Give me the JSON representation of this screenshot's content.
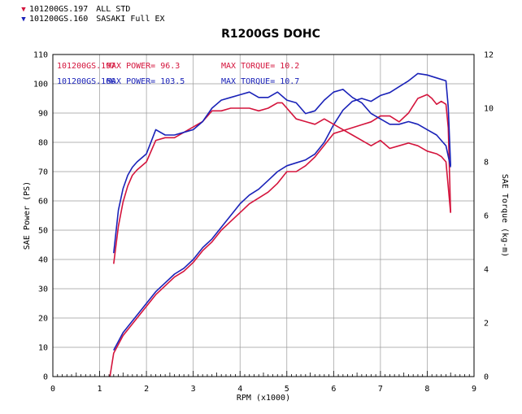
{
  "legend": [
    {
      "label": "101200GS.197",
      "desc": "ALL STD",
      "color": "#d4143c"
    },
    {
      "label": "101200GS.160",
      "desc": "SASAKI Full EX",
      "color": "#1a22b8"
    }
  ],
  "summary": [
    {
      "file": "101200GS.197",
      "power_text": "MAX POWER= 96.3",
      "torque_text": "MAX TORQUE= 10.2",
      "color": "#d4143c"
    },
    {
      "file": "101200GS.160",
      "power_text": "MAX POWER= 103.5",
      "torque_text": "MAX TORQUE= 10.7",
      "color": "#1a22b8"
    }
  ],
  "chart_data": {
    "type": "line",
    "title": "R1200GS DOHC",
    "xlabel": "RPM (x1000)",
    "ylabel": "SAE Power (PS)",
    "y2label": "SAE Torque (kg-m)",
    "xlim": [
      0,
      9
    ],
    "ylim": [
      0,
      110
    ],
    "y2lim": [
      0,
      12
    ],
    "xticks": [
      0,
      1,
      2,
      3,
      4,
      5,
      6,
      7,
      8,
      9
    ],
    "yticks": [
      0,
      10,
      20,
      30,
      40,
      50,
      60,
      70,
      80,
      90,
      100,
      110
    ],
    "y2ticks": [
      0,
      2,
      4,
      6,
      8,
      10,
      12
    ],
    "grid": true,
    "series": [
      {
        "name": "101200GS.197",
        "quantity": "power",
        "axis": "left",
        "color": "#d4143c",
        "x": [
          1.22,
          1.3,
          1.4,
          1.5,
          1.6,
          1.8,
          2.0,
          2.2,
          2.4,
          2.6,
          2.8,
          3.0,
          3.2,
          3.4,
          3.6,
          3.8,
          4.0,
          4.2,
          4.4,
          4.6,
          4.8,
          5.0,
          5.2,
          5.4,
          5.6,
          5.8,
          6.0,
          6.2,
          6.4,
          6.6,
          6.8,
          7.0,
          7.2,
          7.4,
          7.6,
          7.8,
          8.0,
          8.1,
          8.2,
          8.3,
          8.4,
          8.45,
          8.5
        ],
        "y": [
          0,
          8,
          11,
          14,
          16,
          20,
          24,
          28,
          31,
          34,
          36,
          39,
          43,
          46,
          50,
          53,
          56,
          59,
          61,
          63,
          66,
          70,
          70,
          72,
          75,
          79,
          83,
          84,
          85,
          86,
          87,
          89,
          89,
          87,
          90,
          95,
          96.3,
          95,
          93,
          94,
          93,
          85,
          56
        ]
      },
      {
        "name": "101200GS.160",
        "quantity": "power",
        "axis": "left",
        "color": "#1a22b8",
        "x": [
          1.3,
          1.4,
          1.5,
          1.6,
          1.8,
          2.0,
          2.2,
          2.4,
          2.6,
          2.8,
          3.0,
          3.2,
          3.4,
          3.6,
          3.8,
          4.0,
          4.2,
          4.4,
          4.6,
          4.8,
          5.0,
          5.2,
          5.4,
          5.6,
          5.8,
          6.0,
          6.2,
          6.4,
          6.6,
          6.8,
          7.0,
          7.2,
          7.4,
          7.6,
          7.8,
          8.0,
          8.2,
          8.4,
          8.45,
          8.5
        ],
        "y": [
          9,
          12,
          15,
          17,
          21,
          25,
          29,
          32,
          35,
          37,
          40,
          44,
          47,
          51,
          55,
          59,
          62,
          64,
          67,
          70,
          72,
          73,
          74,
          76,
          80,
          86,
          91,
          94,
          95,
          94,
          96,
          97,
          99,
          101,
          103.5,
          103,
          102,
          101,
          92,
          72
        ]
      },
      {
        "name": "101200GS.197",
        "quantity": "torque",
        "axis": "right",
        "color": "#d4143c",
        "x": [
          1.3,
          1.4,
          1.5,
          1.6,
          1.7,
          1.8,
          2.0,
          2.2,
          2.4,
          2.6,
          2.8,
          3.0,
          3.2,
          3.4,
          3.6,
          3.8,
          4.0,
          4.2,
          4.4,
          4.6,
          4.8,
          4.9,
          5.0,
          5.2,
          5.4,
          5.6,
          5.8,
          6.0,
          6.2,
          6.4,
          6.6,
          6.8,
          7.0,
          7.2,
          7.4,
          7.6,
          7.8,
          8.0,
          8.2,
          8.3,
          8.4,
          8.5
        ],
        "y": [
          4.2,
          5.6,
          6.5,
          7.1,
          7.5,
          7.7,
          8.0,
          8.8,
          8.9,
          8.9,
          9.1,
          9.3,
          9.5,
          9.9,
          9.9,
          10.0,
          10.0,
          10.0,
          9.9,
          10.0,
          10.2,
          10.2,
          10.0,
          9.6,
          9.5,
          9.4,
          9.6,
          9.4,
          9.2,
          9.0,
          8.8,
          8.6,
          8.8,
          8.5,
          8.6,
          8.7,
          8.6,
          8.4,
          8.3,
          8.2,
          8.0,
          6.1
        ]
      },
      {
        "name": "101200GS.160",
        "quantity": "torque",
        "axis": "right",
        "color": "#1a22b8",
        "x": [
          1.3,
          1.4,
          1.5,
          1.6,
          1.7,
          1.8,
          2.0,
          2.2,
          2.4,
          2.6,
          2.8,
          3.0,
          3.2,
          3.4,
          3.6,
          3.8,
          4.0,
          4.2,
          4.4,
          4.6,
          4.8,
          5.0,
          5.2,
          5.4,
          5.6,
          5.8,
          6.0,
          6.2,
          6.4,
          6.6,
          6.8,
          7.0,
          7.2,
          7.4,
          7.6,
          7.8,
          8.0,
          8.2,
          8.3,
          8.4,
          8.5
        ],
        "y": [
          4.6,
          6.2,
          7.0,
          7.5,
          7.8,
          8.0,
          8.3,
          9.2,
          9.0,
          9.0,
          9.1,
          9.2,
          9.5,
          10.0,
          10.3,
          10.4,
          10.5,
          10.6,
          10.4,
          10.4,
          10.6,
          10.3,
          10.2,
          9.8,
          9.9,
          10.3,
          10.6,
          10.7,
          10.4,
          10.2,
          9.8,
          9.6,
          9.4,
          9.4,
          9.5,
          9.4,
          9.2,
          9.0,
          8.8,
          8.6,
          7.8
        ]
      }
    ]
  }
}
